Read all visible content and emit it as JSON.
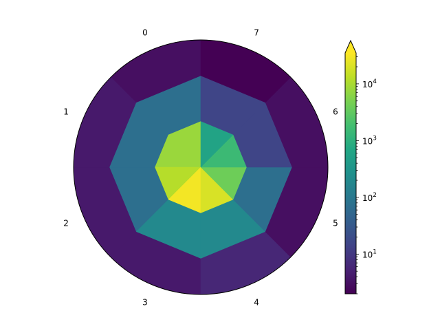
{
  "chart_data": {
    "type": "heatmap",
    "projection": "polar",
    "title": "",
    "sector_labels": [
      "0",
      "1",
      "2",
      "3",
      "4",
      "5",
      "6",
      "7"
    ],
    "ring_count": 3,
    "sector_count": 8,
    "rings_inner_to_outer": [
      [
        8000,
        8000,
        12000,
        30000,
        20000,
        4000,
        1500,
        600
      ],
      [
        70,
        70,
        70,
        200,
        200,
        70,
        15,
        15
      ],
      [
        3,
        4,
        4,
        4,
        6,
        3,
        3,
        2
      ]
    ],
    "colorbar": {
      "scale": "log",
      "range": [
        2,
        35000
      ],
      "tick_labels": [
        "10^1",
        "10^2",
        "10^3",
        "10^4"
      ],
      "tick_values": [
        10,
        100,
        1000,
        10000
      ],
      "extend": "max",
      "colormap": "viridis"
    },
    "grid": false
  }
}
